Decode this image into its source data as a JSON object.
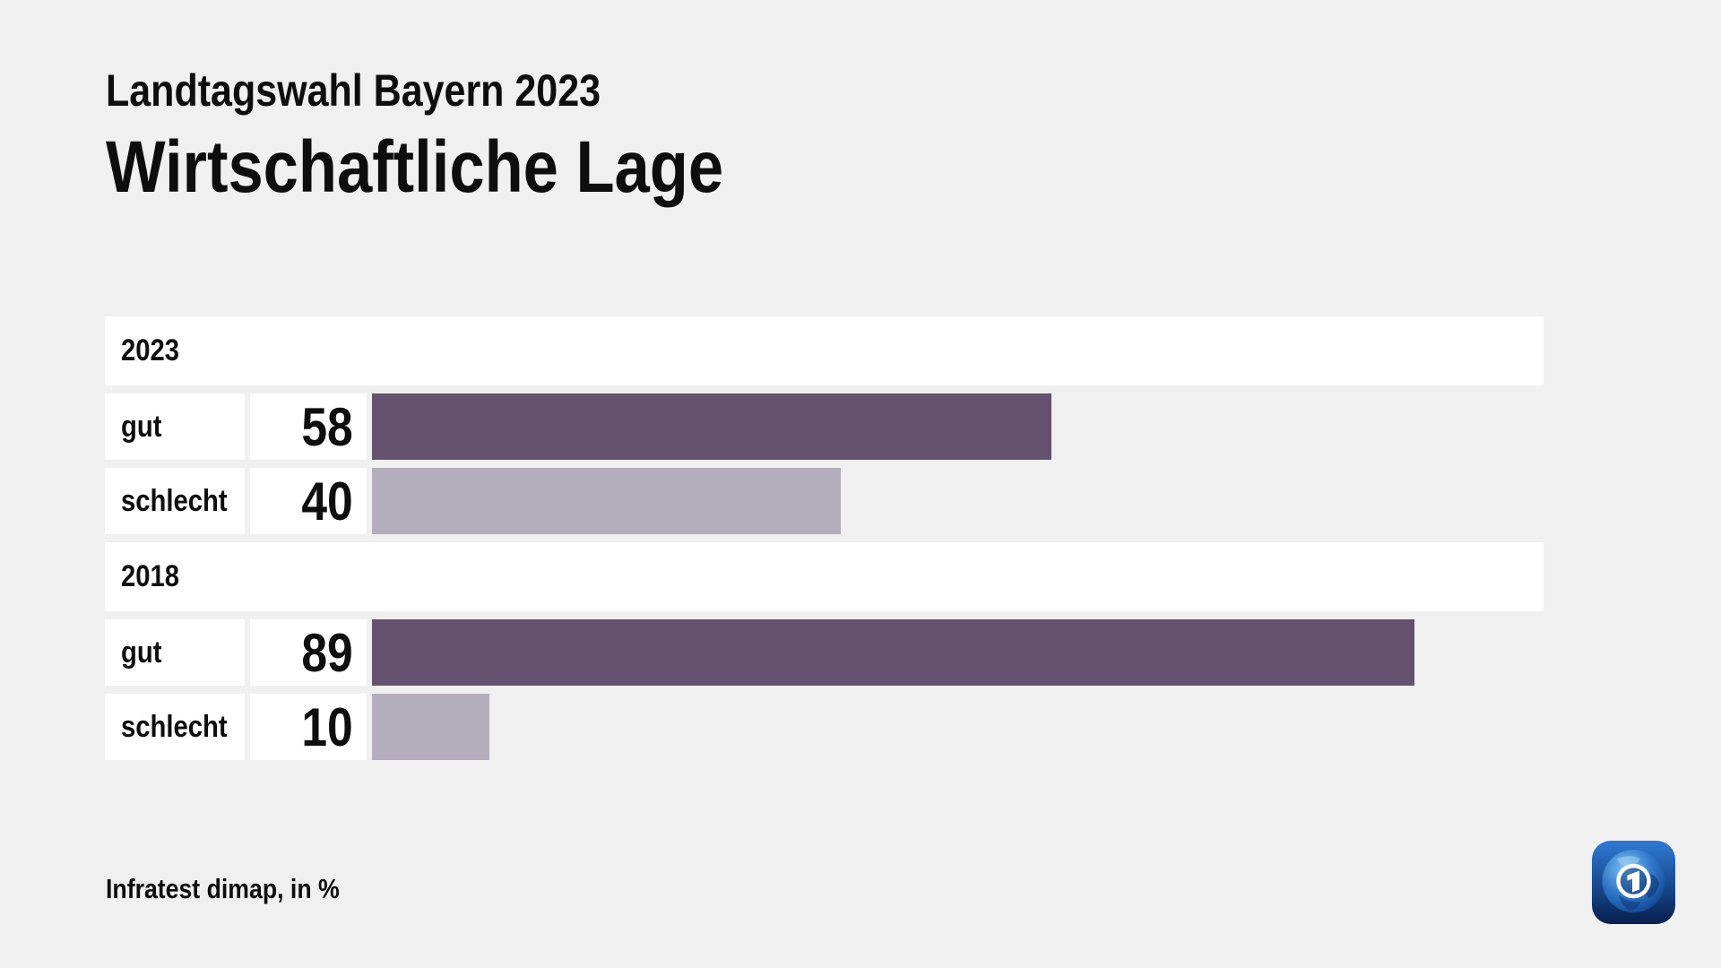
{
  "page": {
    "background": "#f0f0f0",
    "subtitle": "Landtagswahl Bayern 2023",
    "title": "Wirtschaftliche Lage",
    "source_note": "Infratest dimap, in %",
    "logo": "tagesschau-ard-globe-logo"
  },
  "colors": {
    "bar_dark": "#655170",
    "bar_light": "#b4adbc",
    "cell_background": "#ffffff",
    "page_background": "#f0f0f0",
    "text": "#0e0e0e",
    "logo_blue_top": "#2e7ad6",
    "logo_blue_bottom": "#071f4e"
  },
  "chart_data": {
    "type": "bar",
    "orientation": "horizontal",
    "title": "Wirtschaftliche Lage",
    "subtitle": "Landtagswahl Bayern 2023",
    "source": "Infratest dimap, in %",
    "unit": "%",
    "xlim": [
      0,
      100
    ],
    "grid": false,
    "legend": false,
    "groups": [
      {
        "year": "2023",
        "bars": [
          {
            "label": "gut",
            "value": 58,
            "color": "#655170"
          },
          {
            "label": "schlecht",
            "value": 40,
            "color": "#b4adbc"
          }
        ]
      },
      {
        "year": "2018",
        "bars": [
          {
            "label": "gut",
            "value": 89,
            "color": "#655170"
          },
          {
            "label": "schlecht",
            "value": 10,
            "color": "#b4adbc"
          }
        ]
      }
    ]
  }
}
